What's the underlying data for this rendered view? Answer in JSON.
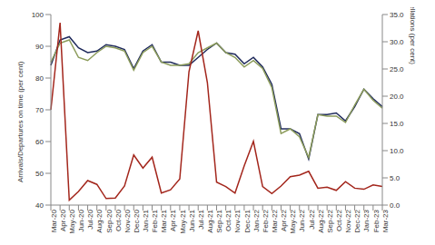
{
  "chart_data": {
    "type": "line",
    "categories": [
      "Mar-20",
      "Apr-20",
      "May-20",
      "Jun-20",
      "Jul-20",
      "Aug-20",
      "Sep-20",
      "Oct-20",
      "Nov-20",
      "Dec-20",
      "Jan-21",
      "Feb-21",
      "Mar-21",
      "Apr-21",
      "May-21",
      "Jun-21",
      "Jul-21",
      "Aug-21",
      "Sep-21",
      "Oct-21",
      "Nov-21",
      "Dec-21",
      "Jan-22",
      "Feb-22",
      "Mar-22",
      "Apr-22",
      "May-22",
      "Jun-22",
      "Jul-22",
      "Aug-22",
      "Sep-22",
      "Oct-22",
      "Nov-22",
      "Dec-22",
      "Jan-23",
      "Feb-23",
      "Mar-23"
    ],
    "y_label": "Arrivals/Departures on time (per cent)",
    "y2_label": "Cancellations (per cent)",
    "ylim": [
      40,
      100
    ],
    "yticks": [
      40,
      50,
      60,
      70,
      80,
      90,
      100
    ],
    "y2lim": [
      0,
      35
    ],
    "y2ticks": [
      {
        "value": 0,
        "label": "0.0"
      },
      {
        "value": 5,
        "label": "5.0"
      },
      {
        "value": 10,
        "label": "10.0"
      },
      {
        "value": 15,
        "label": "15.0"
      },
      {
        "value": 20,
        "label": "20.0"
      },
      {
        "value": 25,
        "label": "25.0"
      },
      {
        "value": 30,
        "label": "30.0"
      },
      {
        "value": 35,
        "label": "35.0"
      }
    ],
    "grid": false,
    "series": [
      {
        "color": "#1f2a5c",
        "values": [
          84,
          92,
          93,
          89.5,
          88,
          88.5,
          90.5,
          90,
          89,
          83,
          88.5,
          90.5,
          85,
          85,
          84,
          84,
          86.5,
          89,
          91,
          88,
          87.5,
          84.5,
          86.5,
          83.5,
          78,
          64,
          64,
          62.5,
          54.5,
          68.5,
          68.5,
          69,
          66.5,
          71,
          76.5,
          73.5,
          71
        ]
      },
      {
        "color": "#8b9b5a",
        "values": [
          85,
          91,
          92,
          86.5,
          85.5,
          88,
          90,
          89.5,
          88.5,
          82.5,
          88,
          90,
          85,
          84,
          84,
          84.5,
          88,
          89.5,
          91,
          88,
          86.5,
          83.5,
          85.5,
          83,
          77,
          62.5,
          64,
          61.5,
          55,
          68.5,
          68,
          68,
          66,
          71.5,
          76.5,
          73,
          70.5
        ]
      },
      {
        "color": "#a3261c",
        "axis": "y2",
        "values": [
          17.5,
          33.5,
          0.9,
          2.5,
          4.5,
          3.8,
          1.2,
          1.3,
          3.5,
          9.2,
          6.8,
          8.8,
          2.2,
          2.8,
          4.8,
          24.5,
          32,
          22.5,
          4.2,
          3.4,
          2.2,
          7.2,
          11.7,
          3.4,
          2.1,
          3.5,
          5.2,
          5.5,
          6.2,
          3.1,
          3.3,
          2.7,
          4.3,
          3.1,
          2.9,
          3.7,
          3.4
        ]
      }
    ]
  }
}
